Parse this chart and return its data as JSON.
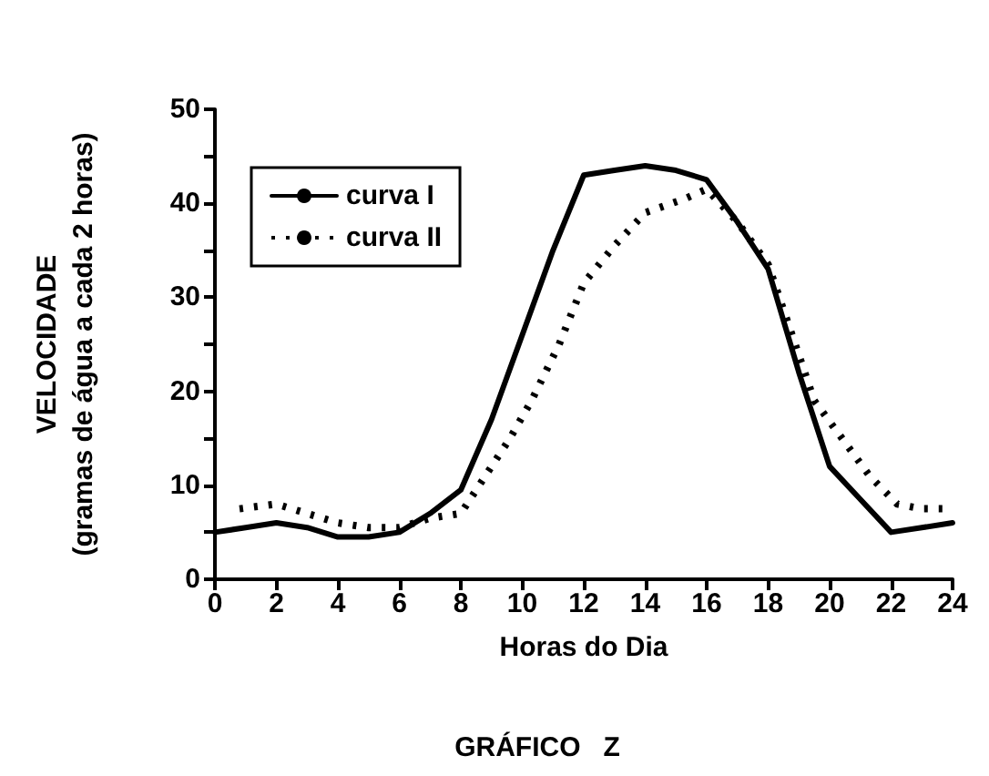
{
  "chart_data": {
    "type": "line",
    "title": "GRÁFICO   Z",
    "xlabel": "Horas do Dia",
    "ylabel": "VELOCIDADE\n(gramas de água a cada 2 horas)",
    "xlim": [
      0,
      24
    ],
    "xticks": [
      0,
      2,
      4,
      6,
      8,
      10,
      12,
      14,
      16,
      18,
      20,
      22,
      24
    ],
    "ylim": [
      0,
      50
    ],
    "yticks": [
      0,
      {
        "value": 5,
        "label": null
      },
      10,
      {
        "value": 15,
        "label": null
      },
      20,
      {
        "value": 25,
        "label": null
      },
      30,
      {
        "value": 35,
        "label": null
      },
      40,
      {
        "value": 45,
        "label": null
      },
      50
    ],
    "grid": false,
    "legend": "top left",
    "marker": "none",
    "series": [
      {
        "name": "curva I",
        "color": "#000000",
        "line_style": "solid",
        "x": [
          0,
          1,
          2,
          3,
          4,
          5,
          6,
          7,
          8,
          9,
          10,
          11,
          12,
          13,
          14,
          15,
          16,
          17,
          18,
          19,
          20,
          21,
          22,
          23,
          24
        ],
        "values": [
          5,
          5.5,
          6,
          5.5,
          4.5,
          4.5,
          5,
          7,
          9.5,
          17,
          26,
          35,
          43,
          43.5,
          44,
          43.5,
          42.5,
          38,
          33,
          22,
          12,
          8.5,
          5,
          5.5,
          6
        ]
      },
      {
        "name": "curva II",
        "color": "#000000",
        "line_style": "dotted",
        "x": [
          0.8,
          2,
          3,
          4,
          5,
          6,
          7,
          8,
          9.6,
          10.3,
          11.2,
          12,
          13,
          14,
          15.3,
          16,
          17,
          18,
          19.5,
          20.4,
          21.3,
          22.2,
          23,
          24
        ],
        "values": [
          7.5,
          8,
          7,
          6,
          5.5,
          5.5,
          6.5,
          7,
          15,
          19,
          25,
          31.5,
          35.5,
          39,
          40.5,
          41.5,
          38,
          33.5,
          19,
          15,
          11,
          8,
          7.5,
          7.5
        ]
      }
    ]
  }
}
